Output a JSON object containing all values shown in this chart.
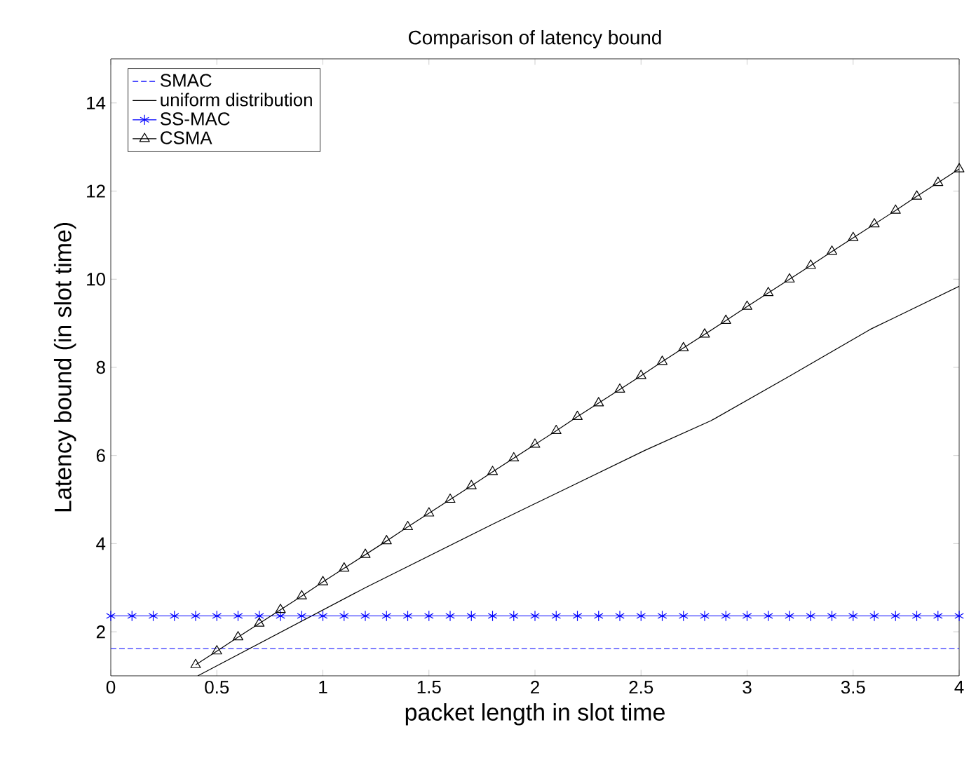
{
  "chart_data": {
    "type": "line",
    "title": "Comparison of latency bound",
    "xlabel": "packet length in slot time",
    "ylabel": "Latency bound (in slot time)",
    "xlim": [
      0,
      4
    ],
    "ylim": [
      1,
      15
    ],
    "xticks": [
      0,
      0.5,
      1,
      1.5,
      2,
      2.5,
      3,
      3.5,
      4
    ],
    "yticks": [
      2,
      4,
      6,
      8,
      10,
      12,
      14
    ],
    "grid": false,
    "legend": "top left",
    "series": [
      {
        "name": "SMAC",
        "color": "#0000ff",
        "line_style": "dashed",
        "marker": "none",
        "x": [
          0,
          4
        ],
        "values": [
          1.62,
          1.62
        ]
      },
      {
        "name": "uniform distribution",
        "color": "#000000",
        "line_style": "solid",
        "marker": "none",
        "x": [
          0.41,
          1.2,
          1.8,
          2.16,
          2.52,
          2.83,
          3.2,
          3.58,
          4
        ],
        "values": [
          1,
          3.0,
          4.44,
          5.28,
          6.12,
          6.79,
          7.8,
          8.86,
          9.84
        ]
      },
      {
        "name": "SS-MAC",
        "color": "#0000ff",
        "line_style": "solid",
        "marker": "cross",
        "x": [
          0,
          0.1,
          0.2,
          0.3,
          0.4,
          0.5,
          0.6,
          0.7,
          0.8,
          0.9,
          1,
          1.1,
          1.2,
          1.3,
          1.4,
          1.5,
          1.6,
          1.7,
          1.8,
          1.9,
          2,
          2.1,
          2.2,
          2.3,
          2.4,
          2.5,
          2.6,
          2.7,
          2.8,
          2.9,
          3,
          3.1,
          3.2,
          3.3,
          3.4,
          3.5,
          3.6,
          3.7,
          3.8,
          3.9,
          4
        ],
        "values": [
          2.36,
          2.36,
          2.36,
          2.36,
          2.36,
          2.36,
          2.36,
          2.36,
          2.36,
          2.36,
          2.36,
          2.36,
          2.36,
          2.36,
          2.36,
          2.36,
          2.36,
          2.36,
          2.36,
          2.36,
          2.36,
          2.36,
          2.36,
          2.36,
          2.36,
          2.36,
          2.36,
          2.36,
          2.36,
          2.36,
          2.36,
          2.36,
          2.36,
          2.36,
          2.36,
          2.36,
          2.36,
          2.36,
          2.36,
          2.36,
          2.36
        ]
      },
      {
        "name": "CSMA",
        "color": "#000000",
        "line_style": "solid",
        "marker": "triangle",
        "x": [
          0.4,
          0.5,
          0.6,
          0.7,
          0.8,
          0.9,
          1,
          1.1,
          1.2,
          1.3,
          1.4,
          1.5,
          1.6,
          1.7,
          1.8,
          1.9,
          2,
          2.1,
          2.2,
          2.3,
          2.4,
          2.5,
          2.6,
          2.7,
          2.8,
          2.9,
          3,
          3.1,
          3.2,
          3.3,
          3.4,
          3.5,
          3.6,
          3.7,
          3.8,
          3.9,
          4
        ],
        "values": [
          1.25,
          1.56,
          1.88,
          2.19,
          2.5,
          2.81,
          3.13,
          3.44,
          3.75,
          4.06,
          4.38,
          4.69,
          5.0,
          5.31,
          5.63,
          5.94,
          6.25,
          6.56,
          6.88,
          7.19,
          7.5,
          7.81,
          8.13,
          8.44,
          8.75,
          9.06,
          9.38,
          9.69,
          10.0,
          10.31,
          10.63,
          10.94,
          11.25,
          11.56,
          11.88,
          12.19,
          12.5
        ]
      }
    ]
  }
}
